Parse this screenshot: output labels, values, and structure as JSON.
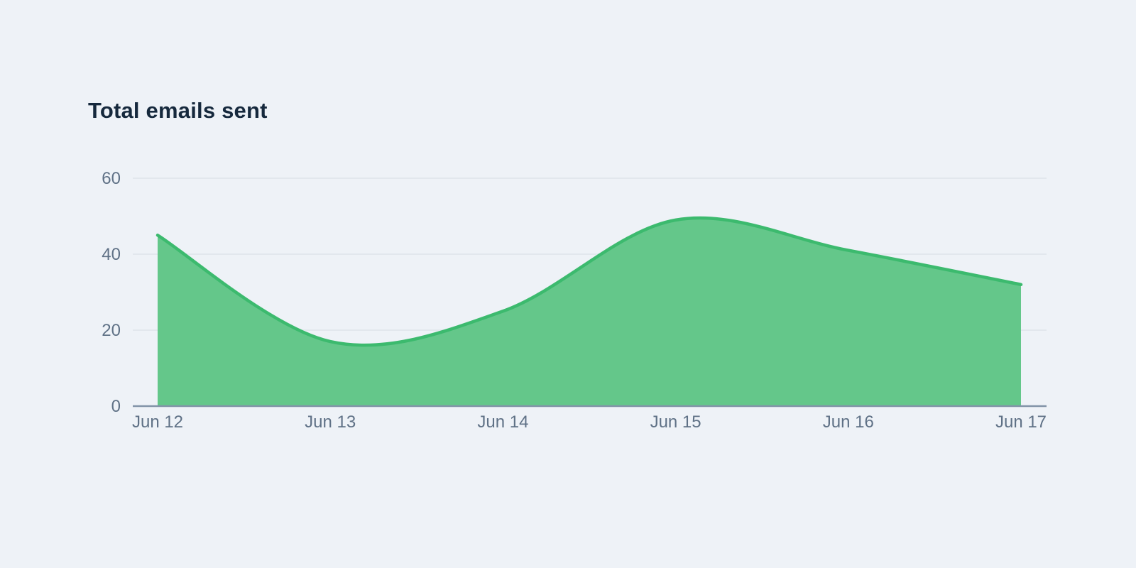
{
  "page": {
    "background_color": "#eef2f7"
  },
  "chart_data": {
    "type": "area",
    "title": "Total emails sent",
    "categories": [
      "Jun 12",
      "Jun 13",
      "Jun 14",
      "Jun 15",
      "Jun 16",
      "Jun 17"
    ],
    "series": [
      {
        "name": "Total emails sent",
        "values": [
          45,
          17,
          25,
          49,
          41,
          32
        ]
      }
    ],
    "xlabel": "",
    "ylabel": "",
    "ylim": [
      0,
      60
    ],
    "yticks": [
      0,
      20,
      40,
      60
    ],
    "grid": "horizontal",
    "legend": "none",
    "curve": "smooth",
    "colors": {
      "area_fill": "#64c78a",
      "line": "#3cba6e",
      "gridline": "#e2e7ed",
      "axis_line": "#8294a8",
      "tick_label": "#5f7186",
      "title": "#16293d",
      "background": "#eef2f7"
    }
  }
}
